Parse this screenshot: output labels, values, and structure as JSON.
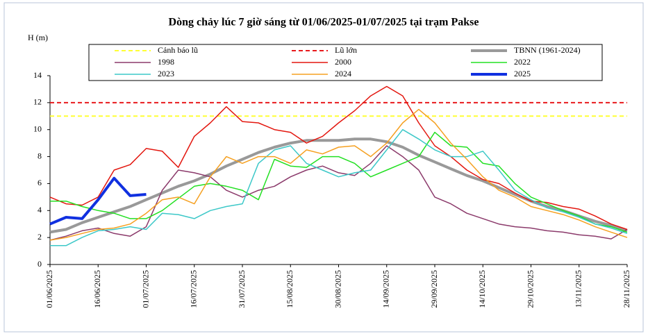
{
  "chart_data": {
    "type": "line",
    "title": "Dòng chảy lúc 7 giờ sáng từ 01/06/2025-01/07/2025 tại trạm Pakse",
    "y_label": "H (m)",
    "xlim": [
      "01/06/2025",
      "28/11/2025"
    ],
    "xticks": [
      "01/06/2025",
      "16/06/2025",
      "01/07/2025",
      "16/07/2025",
      "31/07/2025",
      "15/08/2025",
      "30/08/2025",
      "14/09/2025",
      "29/09/2025",
      "14/10/2025",
      "29/10/2025",
      "13/11/2025",
      "28/11/2025"
    ],
    "ylim": [
      0,
      14
    ],
    "yticks": [
      0,
      2,
      4,
      6,
      8,
      10,
      12,
      14
    ],
    "x": [
      "01/06/2025",
      "06/06/2025",
      "11/06/2025",
      "16/06/2025",
      "21/06/2025",
      "26/06/2025",
      "01/07/2025",
      "06/07/2025",
      "11/07/2025",
      "16/07/2025",
      "21/07/2025",
      "26/07/2025",
      "31/07/2025",
      "05/08/2025",
      "10/08/2025",
      "15/08/2025",
      "20/08/2025",
      "25/08/2025",
      "30/08/2025",
      "04/09/2025",
      "09/09/2025",
      "14/09/2025",
      "19/09/2025",
      "24/09/2025",
      "29/09/2025",
      "04/10/2025",
      "09/10/2025",
      "14/10/2025",
      "19/10/2025",
      "24/10/2025",
      "29/10/2025",
      "03/11/2025",
      "08/11/2025",
      "13/11/2025",
      "18/11/2025",
      "23/11/2025",
      "28/11/2025"
    ],
    "series": [
      {
        "name": "Cảnh báo lũ",
        "color": "#ffff33",
        "dashed": true,
        "linewidth": 2,
        "value": 11
      },
      {
        "name": "Lũ lớn",
        "color": "#e8191c",
        "dashed": true,
        "linewidth": 2,
        "value": 12
      },
      {
        "name": "TBNN (1961-2024)",
        "color": "#999999",
        "linewidth": 4,
        "values": [
          2.4,
          2.6,
          3.1,
          3.5,
          3.9,
          4.3,
          4.8,
          5.3,
          5.8,
          6.2,
          6.7,
          7.3,
          7.8,
          8.3,
          8.7,
          9.0,
          9.2,
          9.2,
          9.2,
          9.3,
          9.3,
          9.1,
          8.7,
          8.1,
          7.6,
          7.1,
          6.6,
          6.2,
          5.7,
          5.2,
          4.7,
          4.3,
          4.0,
          3.6,
          3.2,
          2.9,
          2.5
        ]
      },
      {
        "name": "1998",
        "color": "#8b3a6b",
        "linewidth": 1.5,
        "values": [
          1.8,
          2.1,
          2.5,
          2.7,
          2.3,
          2.1,
          2.8,
          5.5,
          7.0,
          6.8,
          6.5,
          5.5,
          5.0,
          5.5,
          5.8,
          6.5,
          7.0,
          7.3,
          6.8,
          6.6,
          7.5,
          8.8,
          8.0,
          7.0,
          5.0,
          4.5,
          3.8,
          3.4,
          3.0,
          2.8,
          2.7,
          2.5,
          2.4,
          2.2,
          2.1,
          1.9,
          2.6
        ]
      },
      {
        "name": "2000",
        "color": "#e3170f",
        "linewidth": 1.5,
        "values": [
          5.0,
          4.5,
          4.4,
          5.0,
          7.0,
          7.4,
          8.6,
          8.4,
          7.2,
          9.5,
          10.5,
          11.7,
          10.6,
          10.5,
          10.0,
          9.8,
          9.0,
          9.5,
          10.5,
          11.4,
          12.5,
          13.2,
          12.5,
          10.5,
          8.8,
          8.0,
          7.0,
          6.3,
          6.0,
          5.3,
          4.7,
          4.6,
          4.3,
          4.1,
          3.6,
          3.0,
          2.6
        ]
      },
      {
        "name": "2022",
        "color": "#22e022",
        "linewidth": 1.5,
        "values": [
          4.7,
          4.7,
          4.3,
          4.0,
          3.8,
          3.4,
          3.4,
          4.0,
          4.9,
          5.8,
          6.0,
          5.8,
          5.5,
          4.8,
          7.8,
          7.3,
          7.2,
          8.0,
          8.0,
          7.5,
          6.5,
          7.0,
          7.5,
          8.0,
          9.8,
          8.8,
          8.7,
          7.5,
          7.3,
          6.0,
          5.0,
          4.5,
          4.0,
          3.6,
          3.0,
          2.8,
          2.4
        ]
      },
      {
        "name": "2023",
        "color": "#3cc8c8",
        "linewidth": 1.5,
        "values": [
          1.4,
          1.4,
          2.0,
          2.5,
          2.6,
          2.8,
          2.6,
          3.8,
          3.7,
          3.4,
          4.0,
          4.3,
          4.5,
          7.5,
          8.5,
          8.8,
          7.5,
          7.0,
          6.5,
          6.8,
          7.0,
          8.5,
          10.0,
          9.3,
          8.5,
          8.0,
          8.0,
          8.4,
          7.0,
          5.5,
          4.8,
          4.2,
          3.9,
          3.5,
          3.0,
          2.7,
          2.3
        ]
      },
      {
        "name": "2024",
        "color": "#f5a020",
        "linewidth": 1.5,
        "values": [
          1.8,
          2.0,
          2.3,
          2.6,
          2.7,
          3.0,
          3.8,
          4.8,
          5.0,
          4.5,
          6.5,
          8.0,
          7.5,
          8.0,
          8.0,
          7.5,
          8.5,
          8.2,
          8.7,
          8.8,
          8.0,
          9.0,
          10.5,
          11.5,
          10.5,
          9.0,
          7.8,
          6.5,
          5.5,
          5.0,
          4.3,
          4.0,
          3.7,
          3.3,
          2.8,
          2.4,
          2.0
        ]
      },
      {
        "name": "2025",
        "color": "#1030e0",
        "linewidth": 4,
        "values": [
          3.0,
          3.5,
          3.4,
          4.8,
          6.4,
          5.1,
          5.2,
          null,
          null,
          null,
          null,
          null,
          null,
          null,
          null,
          null,
          null,
          null,
          null,
          null,
          null,
          null,
          null,
          null,
          null,
          null,
          null,
          null,
          null,
          null,
          null,
          null,
          null,
          null,
          null,
          null,
          null
        ]
      }
    ]
  }
}
